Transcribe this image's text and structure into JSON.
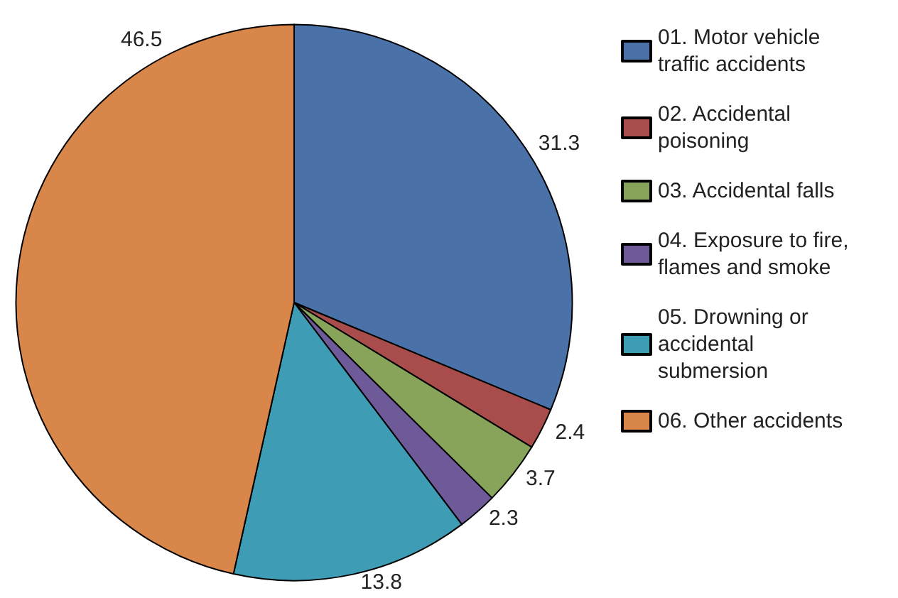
{
  "chart_data": {
    "type": "pie",
    "categories": [
      "01. Motor vehicle traffic accidents",
      "02. Accidental poisoning",
      "03. Accidental falls",
      "04. Exposure to fire, flames and smoke",
      "05. Drowning or accidental submersion",
      "06. Other accidents"
    ],
    "values": [
      31.3,
      2.4,
      3.7,
      2.3,
      13.8,
      46.5
    ],
    "colors": [
      "#4a72a8",
      "#a84c4c",
      "#87a45a",
      "#6e5a99",
      "#3e9cb5",
      "#d9864a"
    ],
    "data_labels": true,
    "legend": "right"
  }
}
